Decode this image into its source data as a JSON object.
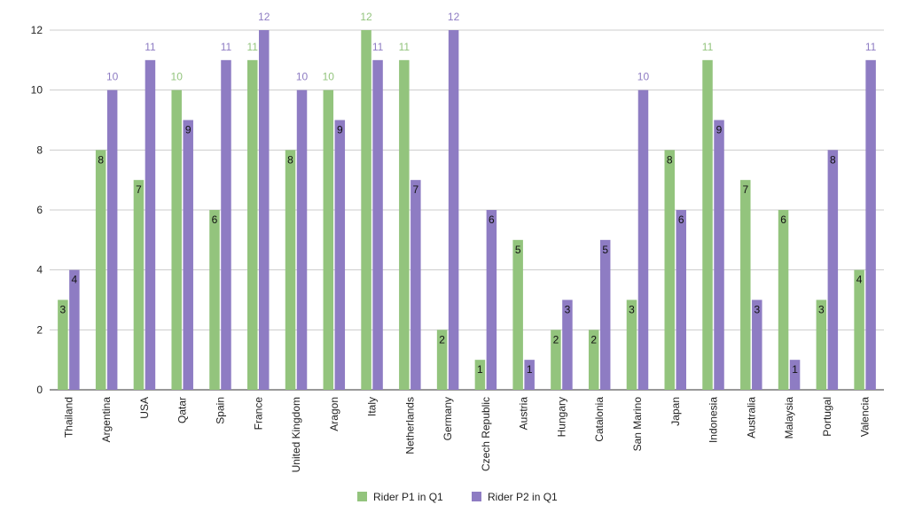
{
  "chart_data": {
    "type": "bar",
    "title": "",
    "xlabel": "",
    "ylabel": "",
    "ylim": [
      0,
      12
    ],
    "yticks": [
      0,
      2,
      4,
      6,
      8,
      10,
      12
    ],
    "grid": true,
    "legend_position": "bottom",
    "categories": [
      "Thailand",
      "Argentina",
      "USA",
      "Qatar",
      "Spain",
      "France",
      "United Kingdom",
      "Aragon",
      "Italy",
      "Netherlands",
      "Germany",
      "Czech Republic",
      "Austria",
      "Hungary",
      "Catalonia",
      "San Marino",
      "Japan",
      "Indonesia",
      "Australia",
      "Malaysia",
      "Portugal",
      "Valencia"
    ],
    "series": [
      {
        "name": "Rider P1 in Q1",
        "color": "#93c47d",
        "values": [
          3,
          8,
          7,
          10,
          6,
          11,
          8,
          10,
          12,
          11,
          2,
          1,
          5,
          2,
          2,
          3,
          8,
          11,
          7,
          6,
          3,
          4
        ]
      },
      {
        "name": "Rider P2 in Q1",
        "color": "#8e7cc3",
        "values": [
          4,
          10,
          11,
          9,
          11,
          12,
          10,
          9,
          11,
          7,
          12,
          6,
          1,
          3,
          5,
          10,
          6,
          9,
          3,
          1,
          8,
          11
        ]
      }
    ]
  }
}
